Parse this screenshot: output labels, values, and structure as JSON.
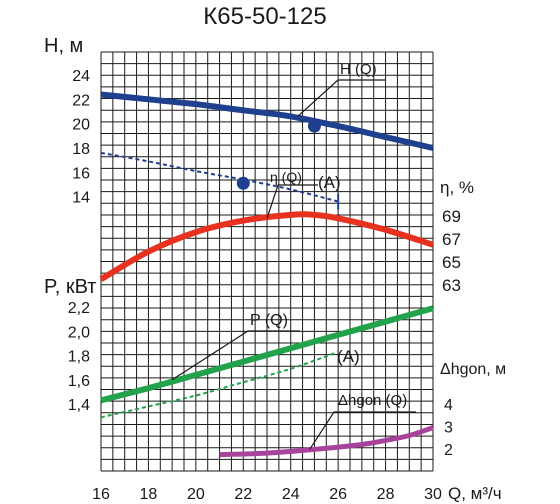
{
  "chart_data": {
    "type": "line",
    "title": "К65-50-125",
    "xlabel": "Q, м³/ч",
    "xlim": [
      16,
      30
    ],
    "x_ticks": [
      "16",
      "18",
      "20",
      "22",
      "24",
      "26",
      "28",
      "30"
    ],
    "grid": true,
    "colors": {
      "head": "#1f3f8f",
      "efficiency": "#e8321f",
      "power": "#22a24a",
      "npsh": "#a8439c",
      "grid": "#1a1a1a"
    },
    "panels": {
      "head": {
        "ylabel": "H, м",
        "ylim": [
          12,
          24
        ],
        "y_ticks": [
          "14",
          "16",
          "18",
          "20",
          "22",
          "24"
        ],
        "series": [
          {
            "name": "H (Q)",
            "x": [
              16,
              18,
              20,
              22,
              24,
              26,
              28,
              30
            ],
            "y": [
              22.4,
              22.0,
              21.6,
              21.1,
              20.6,
              19.8,
              18.9,
              18.0
            ]
          },
          {
            "name": "(A)",
            "style": "dashed",
            "x": [
              16,
              18,
              20,
              22,
              24,
              26
            ],
            "y": [
              17.6,
              16.9,
              16.1,
              15.4,
              14.6,
              13.6
            ]
          }
        ],
        "points": [
          {
            "x": 25.0,
            "y": 19.8
          },
          {
            "x": 22.0,
            "y": 15.1
          }
        ]
      },
      "efficiency": {
        "ylabel": "η, %",
        "y_ticks": [
          "63",
          "65",
          "67",
          "69"
        ],
        "y_tick_values": [
          63,
          65,
          67,
          69
        ],
        "series": [
          {
            "name": "η (Q)",
            "x": [
              16,
              18,
              20,
              22,
              24,
              25,
              26,
              28,
              30
            ],
            "y": [
              63.5,
              65.9,
              67.6,
              68.6,
              69.1,
              69.1,
              68.8,
              67.8,
              66.5
            ]
          }
        ]
      },
      "power": {
        "ylabel": "P, кВт",
        "ylim": [
          1.2,
          2.3
        ],
        "y_ticks": [
          "1,4",
          "1,6",
          "1,8",
          "2,0",
          "2,2"
        ],
        "series": [
          {
            "name": "P (Q)",
            "x": [
              16,
              18,
              20,
              22,
              24,
              26,
              28,
              30
            ],
            "y": [
              1.43,
              1.53,
              1.64,
              1.75,
              1.86,
              1.97,
              2.08,
              2.19
            ]
          },
          {
            "name": "(A)",
            "style": "dashed",
            "x": [
              16,
              18,
              20,
              22,
              24,
              26
            ],
            "y": [
              1.29,
              1.38,
              1.47,
              1.58,
              1.69,
              1.83
            ]
          }
        ]
      },
      "npsh": {
        "ylabel": "Δhgon, м",
        "ylim": [
          1,
          5
        ],
        "y_ticks": [
          "2",
          "3",
          "4"
        ],
        "series": [
          {
            "name": "Δhgon (Q)",
            "x": [
              21,
              23,
              25,
              27,
              28,
              29,
              30
            ],
            "y": [
              1.75,
              1.82,
              1.98,
              2.2,
              2.38,
              2.6,
              2.95
            ]
          }
        ]
      }
    }
  }
}
